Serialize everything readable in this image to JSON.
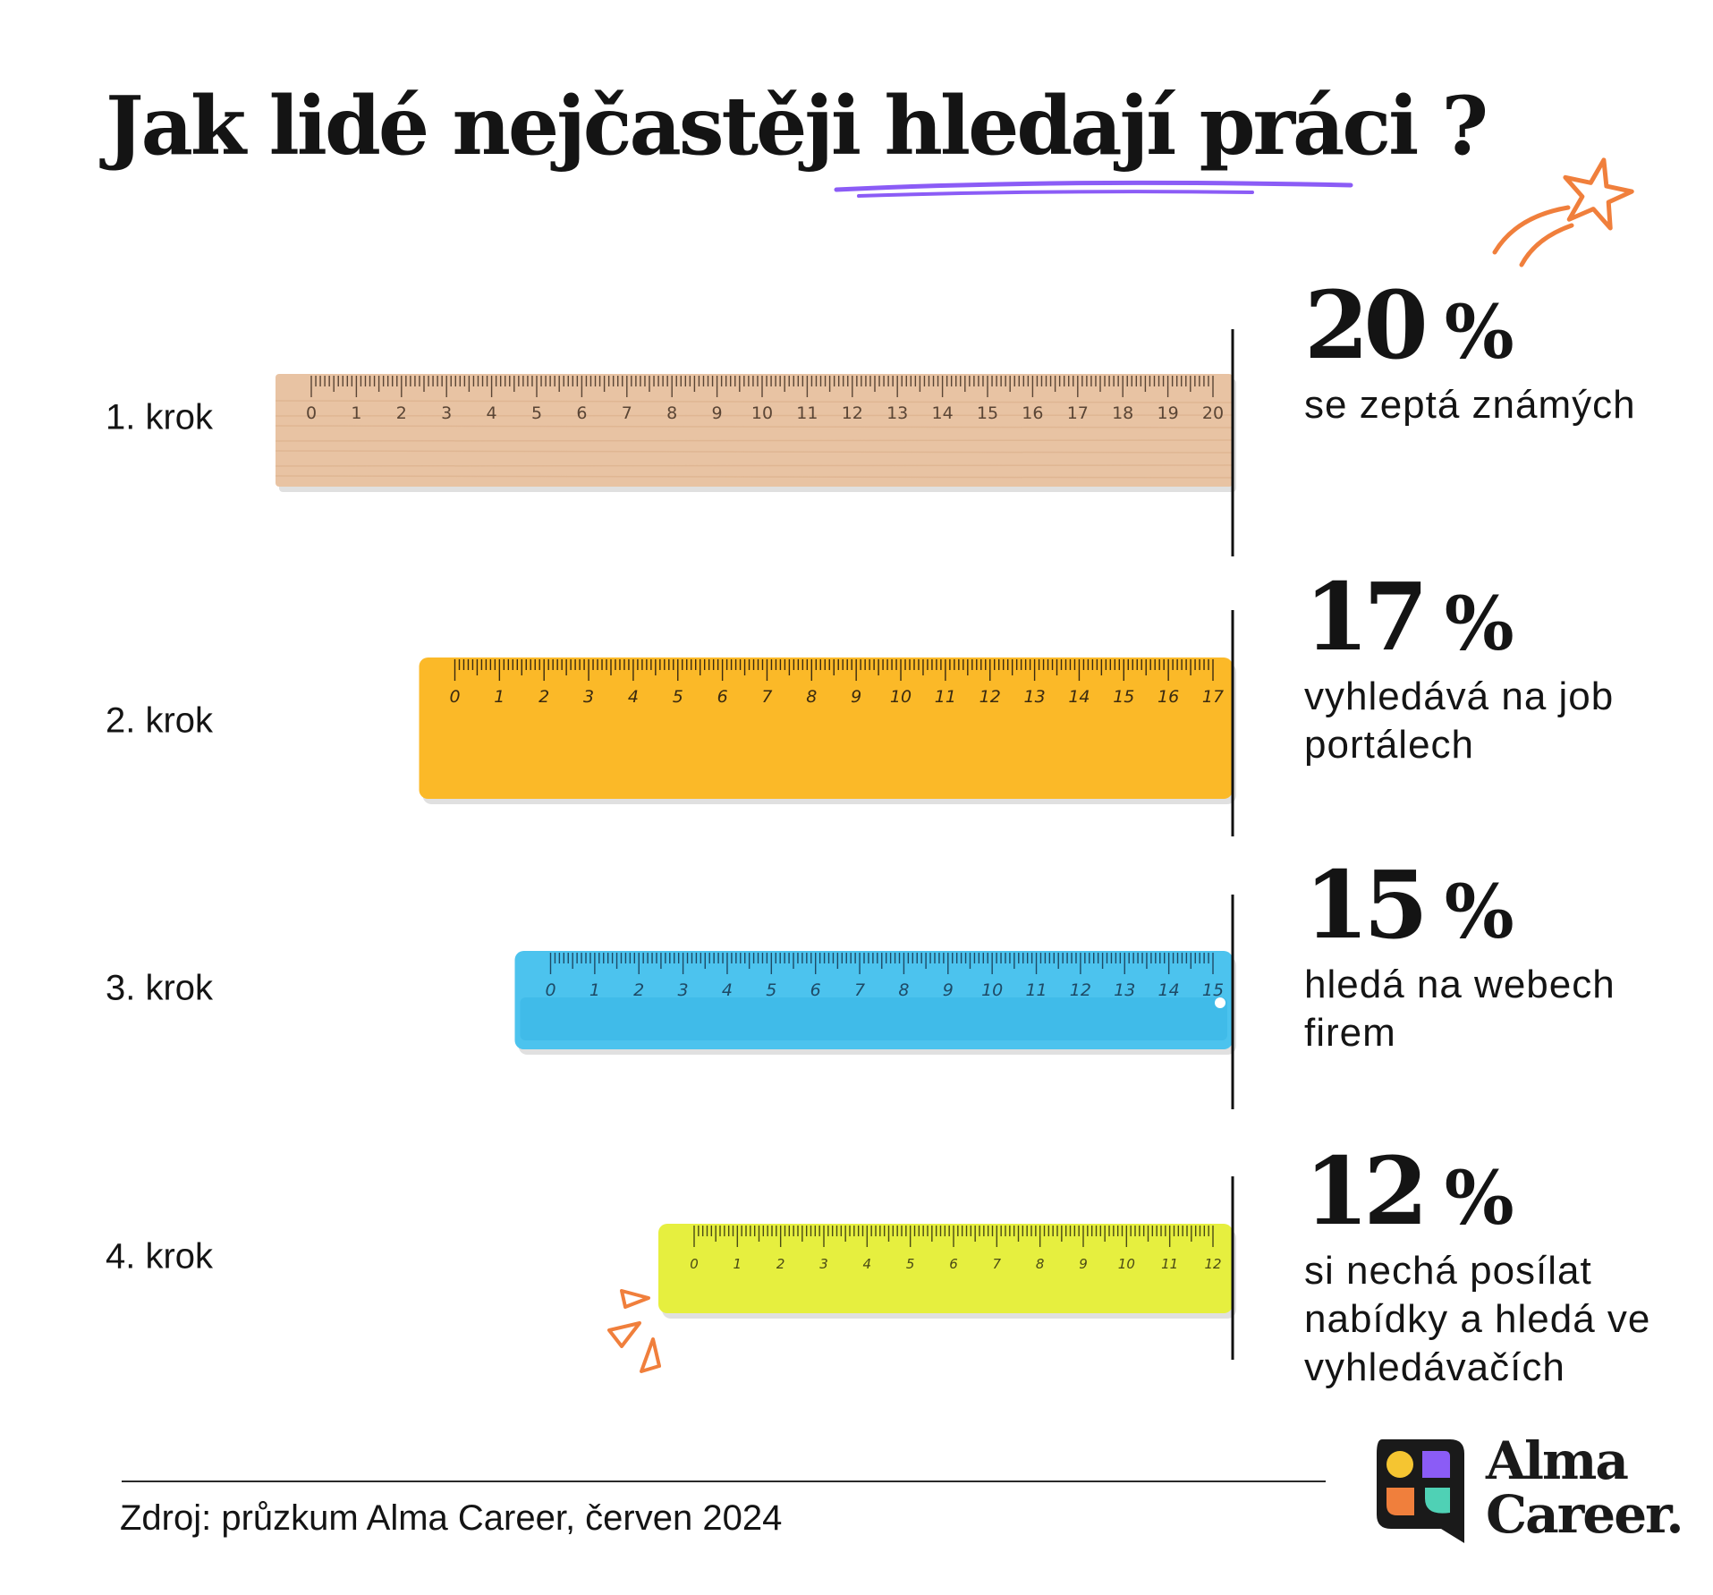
{
  "title": {
    "prefix": "Jak lidé nejčastěji ",
    "highlight": "hledají práci",
    "suffix": "?"
  },
  "chart_data": {
    "type": "bar",
    "title": "Jak lidé nejčastěji hledají práci ?",
    "unit": "%",
    "categories": [
      "1. krok",
      "2. krok",
      "3. krok",
      "4. krok"
    ],
    "values": [
      20,
      17,
      15,
      12
    ],
    "descriptions": [
      "se zeptá známých",
      "vyhledává na job portálech",
      "hledá na webech firem",
      "si nechá posílat nabídky a hledá ve vyhledávačích"
    ],
    "bar_styles": [
      "wood",
      "orange",
      "blue",
      "yellow"
    ],
    "bar_colors": [
      "#e8c3a3",
      "#fbb928",
      "#4cc3ee",
      "#e6ef3f"
    ]
  },
  "stats": [
    {
      "value": "20",
      "unit": "%",
      "desc": "se zeptá známých"
    },
    {
      "value": "17",
      "unit": "%",
      "desc": "vyhledává na job portálech"
    },
    {
      "value": "15",
      "unit": "%",
      "desc": "hledá na webech firem"
    },
    {
      "value": "12",
      "unit": "%",
      "desc": "si nechá posílat nabídky a hledá ve vyhledávačích"
    }
  ],
  "steps": [
    "1. krok",
    "2. krok",
    "3. krok",
    "4. krok"
  ],
  "source": "Zdroj: průzkum Alma Career, červen 2024",
  "brand": {
    "name_line1": "Alma",
    "name_line2": "Career.",
    "colors": {
      "accent": "#8b5cf6",
      "orange": "#f07f3c",
      "yellow": "#f5c531",
      "teal": "#4fd1b5",
      "dark": "#1a1a1a"
    }
  },
  "decor_icons": [
    "shooting-star-icon",
    "sparkle-lines-icon"
  ]
}
